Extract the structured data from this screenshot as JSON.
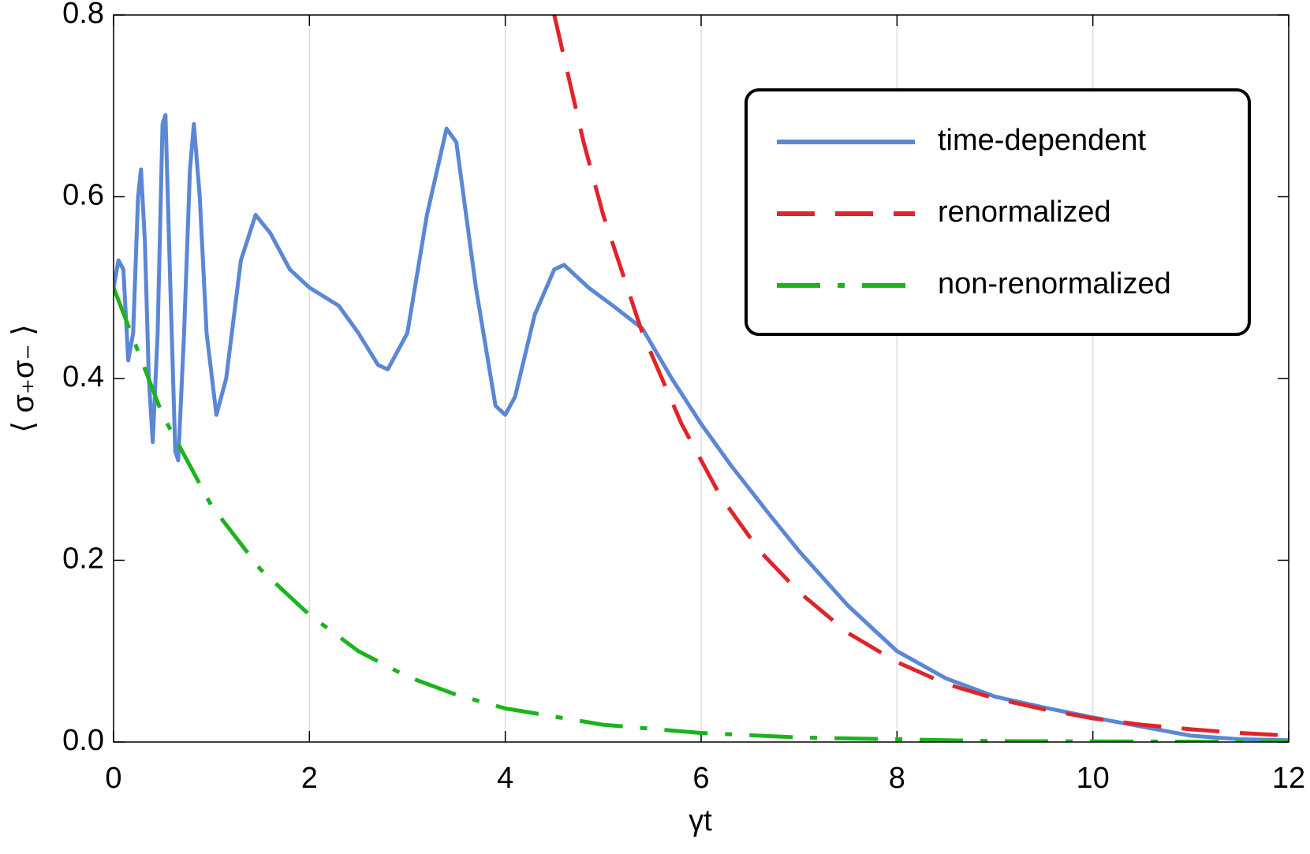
{
  "chart_data": {
    "type": "line",
    "xlabel": "γt",
    "ylabel": "⟨ σ₊σ₋ ⟩",
    "xlim": [
      0,
      12
    ],
    "ylim": [
      0,
      0.8
    ],
    "xticks": [
      0,
      2,
      4,
      6,
      8,
      10,
      12
    ],
    "yticks": [
      {
        "value": 0,
        "label": "0.0"
      },
      0.2,
      0.4,
      0.6,
      0.8
    ],
    "grid": true,
    "legend": "upper right",
    "series": [
      {
        "name": "time-dependent",
        "color": "#5b87d4",
        "dash": "solid",
        "x": [
          0,
          0.05,
          0.1,
          0.15,
          0.2,
          0.25,
          0.28,
          0.32,
          0.36,
          0.4,
          0.45,
          0.5,
          0.53,
          0.58,
          0.63,
          0.66,
          0.72,
          0.78,
          0.82,
          0.88,
          0.95,
          1.05,
          1.15,
          1.3,
          1.45,
          1.6,
          1.8,
          2.0,
          2.3,
          2.5,
          2.7,
          2.8,
          3.0,
          3.2,
          3.4,
          3.5,
          3.7,
          3.9,
          4.0,
          4.1,
          4.3,
          4.5,
          4.6,
          4.75,
          4.85,
          5.1,
          5.4,
          5.7,
          6.0,
          6.3,
          6.7,
          7.0,
          7.5,
          8.0,
          8.5,
          9.0,
          9.5,
          10.0,
          10.5,
          11.0,
          11.5,
          12
        ],
        "values": [
          0.5,
          0.53,
          0.52,
          0.42,
          0.45,
          0.6,
          0.63,
          0.55,
          0.4,
          0.33,
          0.45,
          0.68,
          0.69,
          0.5,
          0.32,
          0.31,
          0.45,
          0.63,
          0.68,
          0.6,
          0.45,
          0.36,
          0.4,
          0.53,
          0.58,
          0.56,
          0.52,
          0.5,
          0.48,
          0.45,
          0.415,
          0.41,
          0.45,
          0.58,
          0.675,
          0.66,
          0.5,
          0.37,
          0.36,
          0.38,
          0.47,
          0.52,
          0.525,
          0.51,
          0.5,
          0.48,
          0.455,
          0.4,
          0.35,
          0.305,
          0.25,
          0.21,
          0.15,
          0.1,
          0.07,
          0.05,
          0.038,
          0.027,
          0.017,
          0.007,
          0.003,
          0.002
        ]
      },
      {
        "name": "renormalized",
        "color": "#e0242b",
        "dash": "dashed",
        "x": [
          4.5,
          4.8,
          5.0,
          5.4,
          5.8,
          6.2,
          6.6,
          7.0,
          7.5,
          8.0,
          8.5,
          9.0,
          9.5,
          10.0,
          10.5,
          11.0,
          11.5,
          12
        ],
        "values": [
          0.8,
          0.66,
          0.58,
          0.45,
          0.35,
          0.27,
          0.21,
          0.165,
          0.12,
          0.088,
          0.064,
          0.048,
          0.036,
          0.026,
          0.019,
          0.014,
          0.01,
          0.007
        ]
      },
      {
        "name": "non-renormalized",
        "color": "#1db31d",
        "dash": "dashdot",
        "x": [
          0,
          0.25,
          0.5,
          0.75,
          1,
          1.5,
          2,
          2.5,
          3,
          3.5,
          4,
          5,
          6,
          7,
          8,
          9,
          10,
          11,
          12
        ],
        "values": [
          0.5,
          0.43,
          0.36,
          0.31,
          0.26,
          0.19,
          0.14,
          0.1,
          0.072,
          0.052,
          0.037,
          0.019,
          0.01,
          0.005,
          0.003,
          0.001,
          0.0007,
          0.0004,
          0.0002
        ]
      }
    ]
  }
}
